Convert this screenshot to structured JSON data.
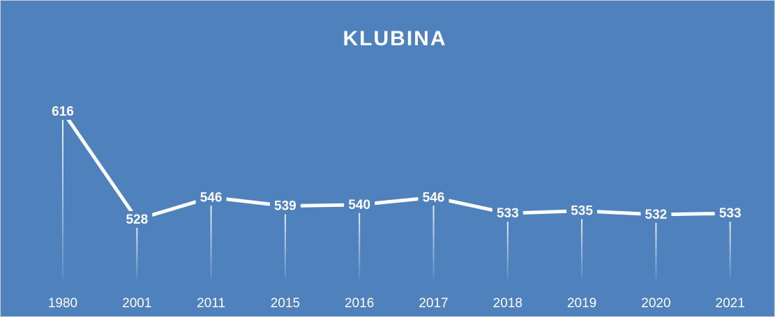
{
  "chart_data": {
    "type": "line",
    "title": "KLUBINA",
    "categories": [
      "1980",
      "2001",
      "2011",
      "2015",
      "2016",
      "2017",
      "2018",
      "2019",
      "2020",
      "2021"
    ],
    "values": [
      616,
      528,
      546,
      539,
      540,
      546,
      533,
      535,
      532,
      533
    ],
    "color": "#ffffff",
    "background": "#4f81bd"
  }
}
